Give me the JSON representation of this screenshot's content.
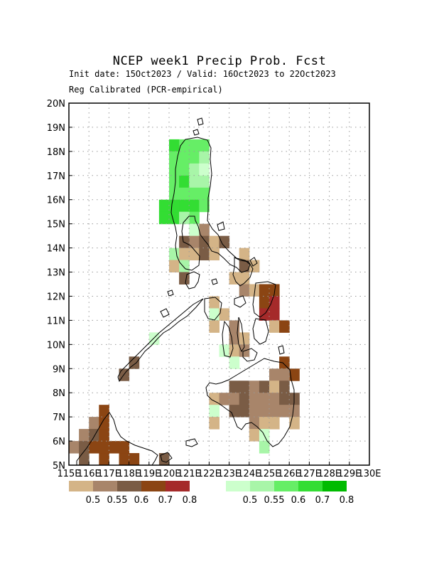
{
  "title": "NCEP week1 Precip Prob. Fcst",
  "subtitle_line1": "Init date: 15Oct2023 / Valid: 16Oct2023 to 22Oct2023",
  "subtitle_line2": "Reg Calibrated (PCR-empirical)",
  "chart_data": {
    "type": "heatmap",
    "region": "Philippines",
    "lon_range": [
      115,
      130
    ],
    "lat_range": [
      5,
      20
    ],
    "grid": true,
    "x_ticks": [
      "115E",
      "116E",
      "117E",
      "118E",
      "119E",
      "120E",
      "121E",
      "122E",
      "123E",
      "124E",
      "125E",
      "126E",
      "127E",
      "128E",
      "129E",
      "130E"
    ],
    "y_ticks": [
      "5N",
      "6N",
      "7N",
      "8N",
      "9N",
      "10N",
      "11N",
      "12N",
      "13N",
      "14N",
      "15N",
      "16N",
      "17N",
      "18N",
      "19N",
      "20N"
    ],
    "legend_dry": {
      "labels": [
        "0.5",
        "0.55",
        "0.6",
        "0.7",
        "0.8"
      ],
      "colors": [
        "#d4b487",
        "#a8856a",
        "#7a5c45",
        "#8b4513",
        "#a52a2a"
      ]
    },
    "legend_wet": {
      "labels": [
        "0.5",
        "0.55",
        "0.6",
        "0.7",
        "0.8"
      ],
      "colors": [
        "#ccffcc",
        "#a8f5a8",
        "#66ee66",
        "#33dd33",
        "#00bb00"
      ]
    },
    "cells": [
      [
        120.5,
        18,
        4
      ],
      [
        120.5,
        17.5,
        3
      ],
      [
        120.5,
        17,
        3
      ],
      [
        120.5,
        16.5,
        3
      ],
      [
        120.5,
        16,
        3
      ],
      [
        121.0,
        18,
        3
      ],
      [
        121.0,
        17.5,
        3
      ],
      [
        121.0,
        17,
        3
      ],
      [
        121.0,
        16.5,
        4
      ],
      [
        121.0,
        16,
        3
      ],
      [
        121.0,
        15.5,
        4
      ],
      [
        121.5,
        18,
        3
      ],
      [
        121.5,
        17.5,
        3
      ],
      [
        121.5,
        17,
        2
      ],
      [
        121.5,
        16.5,
        2
      ],
      [
        121.5,
        16,
        3
      ],
      [
        121.5,
        15.5,
        4
      ],
      [
        121.5,
        15,
        3
      ],
      [
        122.0,
        18,
        3
      ],
      [
        122.0,
        17.5,
        2
      ],
      [
        122.0,
        17,
        1
      ],
      [
        122.0,
        16.5,
        2
      ],
      [
        122.0,
        16,
        3
      ],
      [
        122.0,
        15.5,
        3
      ],
      [
        120.0,
        15.5,
        4
      ],
      [
        120.0,
        15,
        4
      ],
      [
        120.5,
        15,
        4
      ],
      [
        120.5,
        15.5,
        4
      ],
      [
        121.0,
        15,
        2
      ],
      [
        121.5,
        14.5,
        1
      ],
      [
        122.0,
        14.5,
        2
      ],
      [
        121.5,
        14,
        2
      ],
      [
        121.0,
        14,
        3
      ],
      [
        122.0,
        14,
        3
      ],
      [
        122.5,
        14,
        1
      ],
      [
        123.0,
        14,
        3
      ],
      [
        120.5,
        13.5,
        2
      ],
      [
        121.0,
        13.5,
        1
      ],
      [
        121.5,
        13.5,
        1
      ],
      [
        122.0,
        13.5,
        3
      ],
      [
        122.5,
        13.5,
        1
      ],
      [
        120.5,
        13,
        1
      ],
      [
        121.0,
        13,
        2
      ],
      [
        121.0,
        12.5,
        3
      ],
      [
        124.0,
        13.5,
        1
      ],
      [
        124.0,
        13,
        3
      ],
      [
        124.5,
        13,
        1
      ],
      [
        124.0,
        12.5,
        1
      ],
      [
        123.5,
        12.5,
        1
      ],
      [
        124.0,
        12,
        2
      ],
      [
        124.5,
        12,
        1
      ],
      [
        125.0,
        12,
        4
      ],
      [
        125.5,
        12,
        4
      ],
      [
        125.0,
        11.5,
        4
      ],
      [
        125.5,
        11.5,
        5
      ],
      [
        125.0,
        11,
        5
      ],
      [
        125.5,
        11,
        5
      ],
      [
        125.5,
        10.5,
        1
      ],
      [
        126.0,
        10.5,
        4
      ],
      [
        122.5,
        11.5,
        1
      ],
      [
        122.5,
        11,
        1
      ],
      [
        123.0,
        11,
        1
      ],
      [
        122.5,
        10.5,
        1
      ],
      [
        123.5,
        10.5,
        2
      ],
      [
        123.5,
        10,
        2
      ],
      [
        124.0,
        10,
        1
      ],
      [
        123.0,
        9.5,
        1
      ],
      [
        123.5,
        9.5,
        1
      ],
      [
        124.0,
        9.5,
        2
      ],
      [
        123.5,
        9,
        1
      ],
      [
        119.5,
        10,
        1
      ],
      [
        118.5,
        9,
        3
      ],
      [
        118.0,
        8.5,
        3
      ],
      [
        126.0,
        9,
        4
      ],
      [
        126.5,
        8.5,
        4
      ],
      [
        125.5,
        8.5,
        2
      ],
      [
        126.0,
        8.5,
        2
      ],
      [
        123.5,
        8,
        3
      ],
      [
        124.0,
        8,
        3
      ],
      [
        124.5,
        8,
        2
      ],
      [
        125.0,
        8,
        3
      ],
      [
        125.5,
        8,
        1
      ],
      [
        126.0,
        8,
        3
      ],
      [
        123.5,
        7.5,
        2
      ],
      [
        124.0,
        7.5,
        3
      ],
      [
        124.5,
        7.5,
        2
      ],
      [
        125.0,
        7.5,
        2
      ],
      [
        125.5,
        7.5,
        2
      ],
      [
        126.0,
        7.5,
        3
      ],
      [
        126.5,
        7.5,
        3
      ],
      [
        122.5,
        7.5,
        1
      ],
      [
        123.0,
        7.5,
        2
      ],
      [
        123.5,
        7,
        3
      ],
      [
        124.0,
        7,
        3
      ],
      [
        124.5,
        7,
        2
      ],
      [
        125.0,
        7,
        2
      ],
      [
        125.5,
        7,
        2
      ],
      [
        126.0,
        7,
        2
      ],
      [
        126.5,
        7,
        2
      ],
      [
        124.5,
        6.5,
        2
      ],
      [
        125.0,
        6.5,
        1
      ],
      [
        125.5,
        6.5,
        1
      ],
      [
        126.5,
        6.5,
        1
      ],
      [
        124.5,
        6,
        1
      ],
      [
        122.5,
        7,
        1
      ],
      [
        122.5,
        6.5,
        1
      ],
      [
        125.0,
        6,
        1
      ],
      [
        125.0,
        5.5,
        2
      ],
      [
        117.0,
        7,
        4
      ],
      [
        116.5,
        6.5,
        2
      ],
      [
        117.0,
        6.5,
        4
      ],
      [
        116.0,
        6,
        2
      ],
      [
        116.5,
        6,
        3
      ],
      [
        117.0,
        6,
        4
      ],
      [
        115.5,
        5.5,
        2
      ],
      [
        116.0,
        5.5,
        3
      ],
      [
        116.5,
        5.5,
        4
      ],
      [
        117.0,
        5.5,
        4
      ],
      [
        117.5,
        5.5,
        4
      ],
      [
        118.0,
        5.5,
        4
      ],
      [
        115.0,
        5,
        4
      ],
      [
        116.0,
        5,
        3
      ],
      [
        117.0,
        5,
        4
      ],
      [
        118.0,
        5,
        4
      ],
      [
        118.5,
        5,
        4
      ],
      [
        120.0,
        5,
        3
      ]
    ]
  }
}
